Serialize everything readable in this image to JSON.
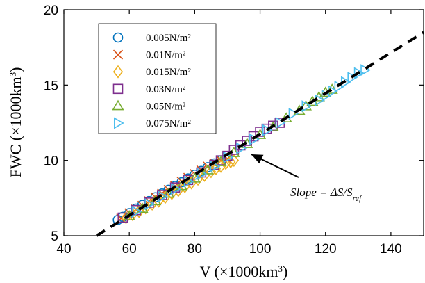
{
  "chart_data": {
    "type": "scatter",
    "xlabel": "V (×1000km³)",
    "ylabel": "FWC (×1000km³)",
    "xlim": [
      40,
      150
    ],
    "ylim": [
      5,
      20
    ],
    "xticks": [
      40,
      60,
      80,
      100,
      120,
      140
    ],
    "yticks": [
      5,
      10,
      15,
      20
    ],
    "grid": false,
    "legend_position": "top-left",
    "series": [
      {
        "name": "0.005N/m²",
        "marker": "circle",
        "color": "#0072BD",
        "x": [
          56.5,
          58,
          60,
          62,
          64,
          66,
          68,
          70,
          72,
          74,
          76,
          78,
          80,
          82,
          84,
          86,
          88
        ],
        "y": [
          6.05,
          6.25,
          6.5,
          6.8,
          7.05,
          7.3,
          7.55,
          7.8,
          8.05,
          8.3,
          8.55,
          8.8,
          9.05,
          9.3,
          9.55,
          9.8,
          10.0
        ]
      },
      {
        "name": "0.01N/m²",
        "marker": "x",
        "color": "#D95319",
        "x": [
          57.5,
          60,
          62,
          64,
          66,
          68,
          70,
          72,
          74,
          76,
          78,
          80,
          82,
          84,
          86,
          88,
          90
        ],
        "y": [
          6.15,
          6.5,
          6.75,
          7.0,
          7.3,
          7.55,
          7.8,
          8.05,
          8.3,
          8.6,
          8.85,
          9.1,
          9.35,
          9.6,
          9.8,
          10.0,
          10.1
        ]
      },
      {
        "name": "0.015N/m²",
        "marker": "diamond",
        "color": "#EDB120",
        "x": [
          59,
          61,
          63,
          65,
          67,
          69,
          71,
          73,
          75,
          77,
          79,
          81,
          83,
          85,
          86.5,
          88,
          89.5,
          91,
          92
        ],
        "y": [
          6.2,
          6.4,
          6.6,
          6.85,
          7.1,
          7.3,
          7.55,
          7.8,
          8.0,
          8.25,
          8.5,
          8.75,
          9.0,
          9.25,
          9.45,
          9.6,
          9.8,
          9.9,
          10.0
        ]
      },
      {
        "name": "0.03N/m²",
        "marker": "square",
        "color": "#7E2F8E",
        "x": [
          58,
          62,
          66,
          70,
          74,
          78,
          82,
          86,
          88,
          90,
          92,
          94,
          96,
          98,
          100,
          102,
          104,
          106
        ],
        "y": [
          6.2,
          6.7,
          7.2,
          7.7,
          8.2,
          8.7,
          9.2,
          9.7,
          10.0,
          10.3,
          10.7,
          11.0,
          11.3,
          11.6,
          11.9,
          12.1,
          12.3,
          12.5
        ]
      },
      {
        "name": "0.05N/m²",
        "marker": "triangle-up",
        "color": "#77AC30",
        "x": [
          60,
          64,
          68,
          72,
          76,
          80,
          84,
          88,
          92,
          96,
          100,
          104,
          108,
          112,
          114,
          116,
          118,
          120,
          122
        ],
        "y": [
          6.3,
          6.8,
          7.3,
          7.8,
          8.3,
          8.8,
          9.35,
          9.9,
          10.5,
          11.1,
          11.7,
          12.2,
          12.8,
          13.3,
          13.6,
          13.9,
          14.2,
          14.5,
          14.7
        ]
      },
      {
        "name": "0.075N/m²",
        "marker": "triangle-right",
        "color": "#4DBEEE",
        "x": [
          62,
          66,
          70,
          74,
          78,
          82,
          86,
          90,
          94,
          98,
          102,
          106,
          110,
          114,
          118,
          120,
          122,
          124,
          126,
          128,
          130,
          132
        ],
        "y": [
          6.6,
          7.1,
          7.6,
          8.1,
          8.6,
          9.1,
          9.6,
          10.2,
          10.8,
          11.4,
          12.0,
          12.5,
          13.1,
          13.6,
          14.0,
          14.3,
          14.6,
          14.9,
          15.2,
          15.5,
          15.8,
          16.0
        ]
      }
    ],
    "fit_line": {
      "style": "dashed",
      "color": "#000000",
      "x": [
        50,
        150
      ],
      "y": [
        5.0,
        18.5
      ]
    },
    "annotation": {
      "text": "Slope = ΔS/S_ref",
      "arrow_to": [
        94,
        11.0
      ]
    }
  }
}
